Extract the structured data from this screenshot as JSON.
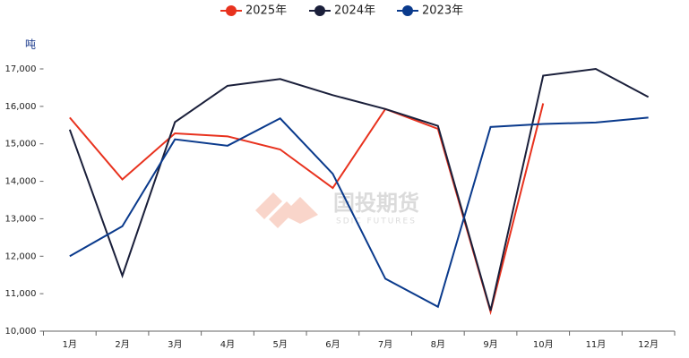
{
  "chart_data": {
    "type": "line",
    "y_label": "吨",
    "watermark": {
      "name": "国投期货",
      "sub": "SDIC FUTURES"
    },
    "categories": [
      "1月",
      "2月",
      "3月",
      "4月",
      "5月",
      "6月",
      "7月",
      "8月",
      "9月",
      "10月",
      "11月",
      "12月"
    ],
    "series": [
      {
        "name": "2025年",
        "color": "#e8321e",
        "values": [
          15700,
          14050,
          15280,
          15200,
          14850,
          13820,
          15930,
          15400,
          10520,
          16080,
          null,
          null
        ]
      },
      {
        "name": "2024年",
        "color": "#1a1f3a",
        "values": [
          15380,
          11480,
          15580,
          16550,
          16730,
          16300,
          15930,
          15480,
          10550,
          16820,
          17000,
          16250
        ]
      },
      {
        "name": "2023年",
        "color": "#0a3a8c",
        "values": [
          12000,
          12800,
          15120,
          14950,
          15680,
          14200,
          11400,
          10650,
          15450,
          15530,
          15570,
          15700
        ]
      }
    ],
    "ylim": [
      10000,
      17000
    ],
    "yticks": [
      {
        "value": 10000,
        "label": "10,000"
      },
      {
        "value": 11000,
        "label": "11,000"
      },
      {
        "value": 12000,
        "label": "12,000"
      },
      {
        "value": 13000,
        "label": "13,000"
      },
      {
        "value": 14000,
        "label": "14,000"
      },
      {
        "value": 15000,
        "label": "15,000"
      },
      {
        "value": 16000,
        "label": "16,000"
      },
      {
        "value": 17000,
        "label": "17,000"
      }
    ],
    "legend": "top"
  }
}
